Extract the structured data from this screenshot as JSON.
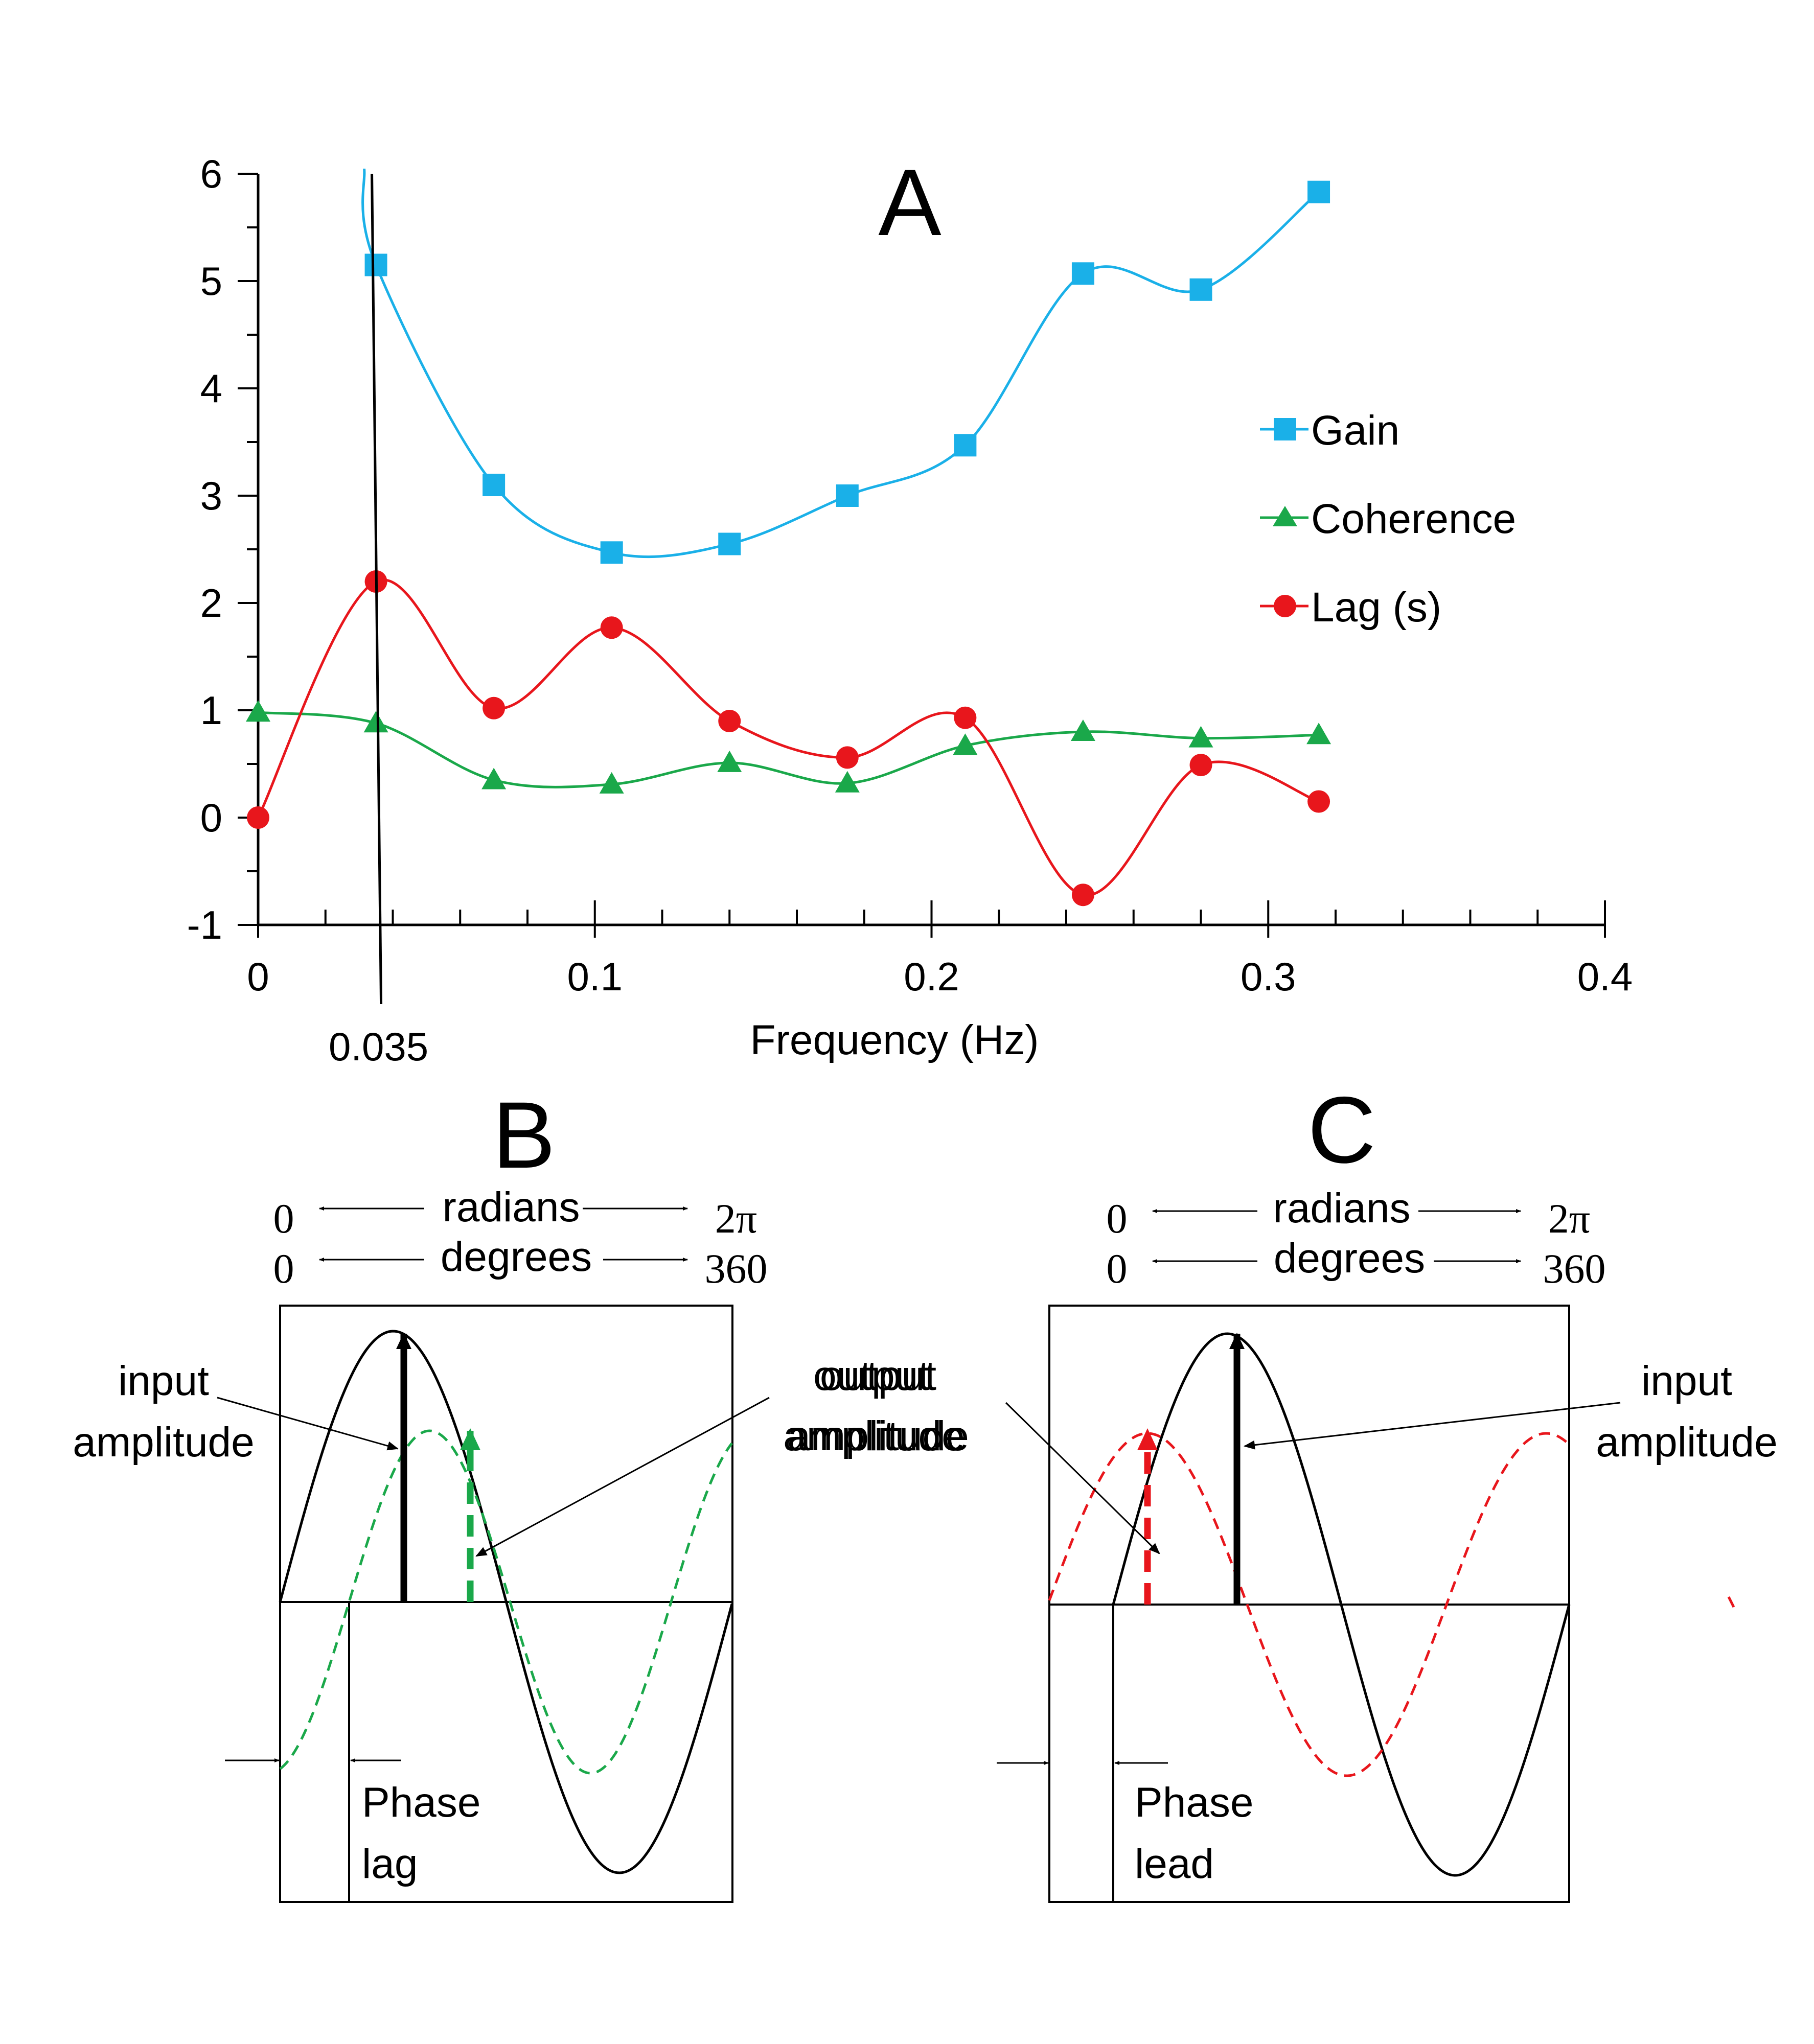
{
  "panels": {
    "a": {
      "letter": "A"
    },
    "b": {
      "letter": "B"
    },
    "c": {
      "letter": "C"
    }
  },
  "chart_data": {
    "type": "line",
    "title": "A",
    "xlabel": "Frequency (Hz)",
    "ylabel": "",
    "xlim": [
      0,
      0.4
    ],
    "ylim": [
      -1,
      6
    ],
    "x_ticks": [
      "0",
      "0.1",
      "0.2",
      "0.3",
      "0.4"
    ],
    "y_ticks": [
      "-1",
      "0",
      "1",
      "2",
      "3",
      "4",
      "5",
      "6"
    ],
    "marker_line": {
      "x": 0.035,
      "label": "0.035"
    },
    "series": [
      {
        "name": "Gain",
        "color": "#1ab0e8",
        "marker": "square",
        "x": [
          0.035,
          0.07,
          0.105,
          0.14,
          0.175,
          0.21,
          0.245,
          0.28,
          0.315
        ],
        "values": [
          5.15,
          3.1,
          2.47,
          2.55,
          3.0,
          3.47,
          5.07,
          4.92,
          5.83
        ]
      },
      {
        "name": "Coherence",
        "color": "#1aa84a",
        "marker": "triangle",
        "x": [
          0,
          0.035,
          0.07,
          0.105,
          0.14,
          0.175,
          0.21,
          0.245,
          0.28,
          0.315
        ],
        "values": [
          0.98,
          0.88,
          0.35,
          0.31,
          0.51,
          0.32,
          0.67,
          0.8,
          0.74,
          0.77
        ]
      },
      {
        "name": "Lag (s)",
        "color": "#e8161c",
        "marker": "circle",
        "x": [
          0,
          0.035,
          0.07,
          0.105,
          0.14,
          0.175,
          0.21,
          0.245,
          0.28,
          0.315
        ],
        "values": [
          0.0,
          2.2,
          1.02,
          1.77,
          0.9,
          0.56,
          0.93,
          -0.72,
          0.49,
          0.15
        ]
      }
    ],
    "legend": [
      "Gain",
      "Coherence",
      "Lag (s)"
    ]
  },
  "diagram_b": {
    "radians_label": "radians",
    "degrees_label": "degrees",
    "rad_start": "0",
    "rad_end": "2π",
    "deg_start": "0",
    "deg_end": "360",
    "input_label_1": "input",
    "input_label_2": "amplitude",
    "output_label_1": "output",
    "output_label_2": "amplitude",
    "phase_label_1": "Phase",
    "phase_label_2": "lag",
    "output_color": "#1aa84a"
  },
  "diagram_c": {
    "radians_label": "radians",
    "degrees_label": "degrees",
    "rad_start": "0",
    "rad_end": "2π",
    "deg_start": "0",
    "deg_end": "360",
    "input_label_1": "input",
    "input_label_2": "amplitude",
    "output_label_1": "output",
    "output_label_2": "amplitude",
    "phase_label_1": "Phase",
    "phase_label_2": "lead",
    "output_color": "#e8161c"
  }
}
